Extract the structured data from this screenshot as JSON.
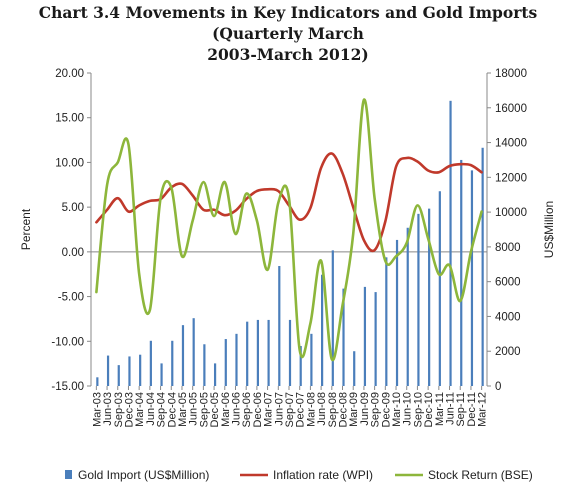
{
  "chart_data": {
    "type": "bar+line",
    "title_line1": "Chart 3.4 Movements in Key Indicators and Gold Imports (Quarterly March",
    "title_line2": "2003-March 2012)",
    "ylabel_left": "Percent",
    "ylabel_right": "US$Million",
    "ylim_left": [
      -15,
      20
    ],
    "ylim_right": [
      0,
      18000
    ],
    "yticks_left": [
      "-15.00",
      "-10.00",
      "-5.00",
      "0.00",
      "5.00",
      "10.00",
      "15.00",
      "20.00"
    ],
    "yticks_right": [
      "0",
      "2000",
      "4000",
      "6000",
      "8000",
      "10000",
      "12000",
      "14000",
      "16000",
      "18000"
    ],
    "x_tick_labels": [
      "Mar-03",
      "Jun-03",
      "Sep-03",
      "Dec-03",
      "Mar-04",
      "Jun-04",
      "Sep-04",
      "Dec-04",
      "Mar-05",
      "Jun-05",
      "Sep-05",
      "Dec-05",
      "Mar-06",
      "Jun-06",
      "Sep-06",
      "Dec-06",
      "Mar-07",
      "Jun-07",
      "Sep-07",
      "Dec-07",
      "Mar-08",
      "Jun-08",
      "Sep-08",
      "Dec-08",
      "Mar-09",
      "Jun-09",
      "Sep-09",
      "Dec-09",
      "Mar-10",
      "Jun-10",
      "Sep-10",
      "Dec-10",
      "Mar-11",
      "Jun-11",
      "Sep-11",
      "Dec-11",
      "Mar-12"
    ],
    "grid": false,
    "legend_position": "bottom",
    "series": [
      {
        "name": "Gold Import (US$Million)",
        "kind": "bar",
        "axis": "right",
        "color": "#4a7ebb",
        "values": [
          500,
          1750,
          1200,
          1700,
          1800,
          2600,
          1300,
          2600,
          3500,
          3900,
          2400,
          1300,
          2700,
          3000,
          3700,
          3800,
          3800,
          6900,
          3800,
          2300,
          3000,
          6400,
          7800,
          5600,
          2000,
          5700,
          5400,
          7400,
          8400,
          9100,
          9900,
          10200,
          11200,
          16400,
          13000,
          12400,
          13700
        ]
      },
      {
        "name": "Inflation rate (WPI)",
        "kind": "line",
        "axis": "left",
        "color": "#c0392b",
        "values": [
          3.3,
          4.7,
          6.0,
          4.5,
          5.2,
          5.7,
          5.9,
          7.2,
          7.6,
          6.3,
          4.7,
          4.7,
          4.1,
          4.6,
          5.9,
          6.8,
          7.0,
          6.8,
          5.2,
          3.6,
          4.9,
          9.4,
          11.0,
          8.8,
          5.0,
          1.3,
          0.2,
          3.4,
          9.5,
          10.5,
          10.1,
          9.1,
          8.9,
          9.6,
          9.8,
          9.7,
          8.9
        ]
      },
      {
        "name": "Stock Return (BSE)",
        "kind": "line",
        "axis": "left",
        "color": "#8db63b",
        "values": [
          -4.5,
          7.5,
          10.0,
          12.0,
          -2.5,
          -6.5,
          6.0,
          7.2,
          -0.5,
          3.5,
          7.8,
          4.0,
          7.8,
          2.0,
          6.5,
          3.5,
          -2.0,
          5.5,
          6.0,
          -11.0,
          -8.0,
          -1.0,
          -12.0,
          -6.0,
          2.0,
          17.0,
          6.0,
          -1.0,
          -0.5,
          1.0,
          5.2,
          1.5,
          -2.5,
          -1.5,
          -5.5,
          0.0,
          4.5
        ]
      }
    ]
  }
}
